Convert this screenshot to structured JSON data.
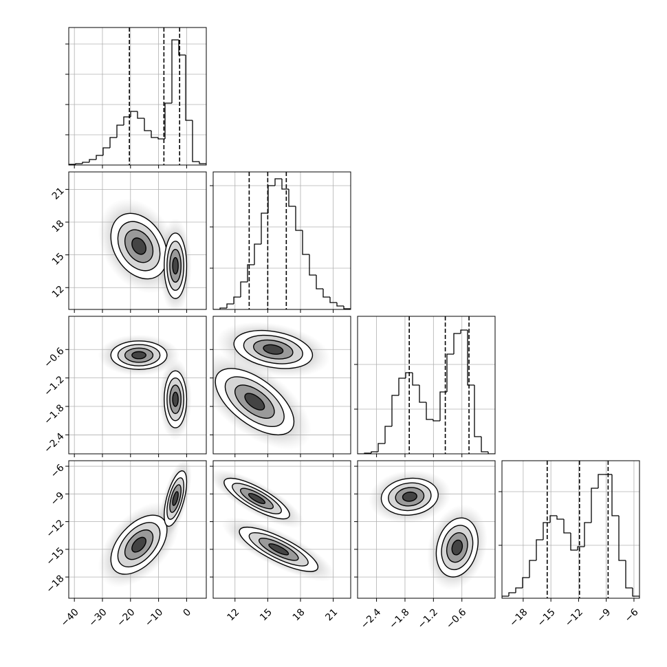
{
  "chart_data": {
    "type": "corner",
    "grid": true,
    "color": "#000000",
    "variables": [
      {
        "lim": [
          -42,
          7
        ],
        "ticks": [
          {
            "value": -40,
            "label": "−40"
          },
          {
            "value": -30,
            "label": "−30"
          },
          {
            "value": -20,
            "label": "−20"
          },
          {
            "value": -10,
            "label": "−10"
          },
          0
        ],
        "quantiles": [
          -20.4,
          -8.1,
          -2.5
        ],
        "bins": [
          -42,
          -39.55,
          -37.1,
          -34.65,
          -32.2,
          -29.75,
          -27.3,
          -24.85,
          -22.4,
          -19.95,
          -17.5,
          -15.05,
          -12.6,
          -10.15,
          -7.7,
          -5.25,
          -2.8,
          -0.35,
          2.1,
          4.55,
          7
        ],
        "counts": [
          1,
          2,
          4,
          8,
          14,
          25,
          40,
          58,
          70,
          78,
          68,
          50,
          40,
          38,
          90,
          182,
          160,
          65,
          5,
          2
        ],
        "ylim": [
          0,
          200
        ],
        "yticks": [
          44,
          88,
          132,
          176
        ]
      },
      {
        "lim": [
          10,
          22.6
        ],
        "ticks": [
          12,
          15,
          18,
          21
        ],
        "quantiles": [
          13.3,
          15.0,
          16.7
        ],
        "bins": [
          10,
          10.63,
          11.26,
          11.89,
          12.52,
          13.15,
          13.78,
          14.41,
          15.04,
          15.67,
          16.3,
          16.93,
          17.56,
          18.19,
          18.82,
          19.45,
          20.08,
          20.71,
          21.34,
          21.97,
          22.6
        ],
        "counts": [
          0,
          2,
          8,
          18,
          40,
          65,
          95,
          140,
          180,
          190,
          175,
          150,
          115,
          80,
          50,
          30,
          18,
          10,
          5,
          1
        ],
        "ylim": [
          0,
          200
        ],
        "yticks": [
          60,
          120,
          180
        ]
      },
      {
        "lim": [
          -2.8,
          0.1
        ],
        "ticks": [
          {
            "value": -2.4,
            "label": "−2.4"
          },
          {
            "value": -1.8,
            "label": "−1.8"
          },
          {
            "value": -1.2,
            "label": "−1.2"
          },
          {
            "value": -0.6,
            "label": "−0.6"
          }
        ],
        "quantiles": [
          -1.71,
          -0.95,
          -0.45
        ],
        "bins": [
          -2.8,
          -2.655,
          -2.51,
          -2.365,
          -2.22,
          -2.075,
          -1.93,
          -1.785,
          -1.64,
          -1.495,
          -1.35,
          -1.205,
          -1.06,
          -0.915,
          -0.77,
          -0.625,
          -0.48,
          -0.335,
          -0.19,
          -0.045,
          0.1
        ],
        "counts": [
          0,
          1,
          3,
          15,
          40,
          85,
          110,
          118,
          100,
          75,
          50,
          48,
          90,
          145,
          175,
          180,
          100,
          25,
          3,
          0
        ],
        "ylim": [
          0,
          200
        ],
        "yticks": [
          65,
          130
        ]
      },
      {
        "lim": [
          -20.3,
          -5.4
        ],
        "ticks": [
          {
            "value": -18,
            "label": "−18"
          },
          {
            "value": -15,
            "label": "−15"
          },
          {
            "value": -12,
            "label": "−12"
          },
          {
            "value": -9,
            "label": "−9"
          },
          {
            "value": -6,
            "label": "−6"
          }
        ],
        "quantiles": [
          -15.4,
          -11.9,
          -8.8
        ],
        "bins": [
          -20.3,
          -19.555,
          -18.81,
          -18.065,
          -17.32,
          -16.575,
          -15.83,
          -15.085,
          -14.34,
          -13.595,
          -12.85,
          -12.105,
          -11.36,
          -10.615,
          -9.87,
          -9.125,
          -8.38,
          -7.635,
          -6.89,
          -6.145,
          -5.4
        ],
        "counts": [
          3,
          8,
          15,
          30,
          55,
          85,
          110,
          120,
          115,
          95,
          70,
          75,
          110,
          160,
          180,
          180,
          120,
          55,
          15,
          3
        ],
        "ylim": [
          0,
          200
        ],
        "yticks": [
          77,
          155
        ]
      }
    ],
    "pairs": [
      [
        [
          {
            "x": -17,
            "y": 15.8,
            "sx": 5,
            "sy": 1.5,
            "rho": -0.3
          },
          {
            "x": -4,
            "y": 14,
            "sx": 2,
            "sy": 1.5,
            "rho": 0
          }
        ]
      ],
      [
        [
          {
            "x": -17,
            "y": -0.72,
            "sx": 5,
            "sy": 0.15,
            "rho": 0
          },
          {
            "x": -4,
            "y": -1.65,
            "sx": 2,
            "sy": 0.3,
            "rho": 0
          }
        ],
        [
          {
            "x": 15.5,
            "y": -0.6,
            "sx": 1.8,
            "sy": 0.2,
            "rho": -0.3
          },
          {
            "x": 13.8,
            "y": -1.7,
            "sx": 1.8,
            "sy": 0.35,
            "rho": -0.6
          }
        ]
      ],
      [
        [
          {
            "x": -17,
            "y": -14.5,
            "sx": 5,
            "sy": 1.6,
            "rho": 0.5
          },
          {
            "x": -4,
            "y": -9.5,
            "sx": 2,
            "sy": 1.5,
            "rho": 0.6
          }
        ],
        [
          {
            "x": 14,
            "y": -9.5,
            "sx": 1.5,
            "sy": 1.1,
            "rho": -0.8
          },
          {
            "x": 16,
            "y": -15,
            "sx": 1.8,
            "sy": 1.2,
            "rho": -0.8
          }
        ],
        [
          {
            "x": -1.7,
            "y": -9.3,
            "sx": 0.3,
            "sy": 1.0,
            "rho": 0.1
          },
          {
            "x": -0.7,
            "y": -14.8,
            "sx": 0.22,
            "sy": 1.6,
            "rho": 0.2
          }
        ]
      ]
    ]
  }
}
